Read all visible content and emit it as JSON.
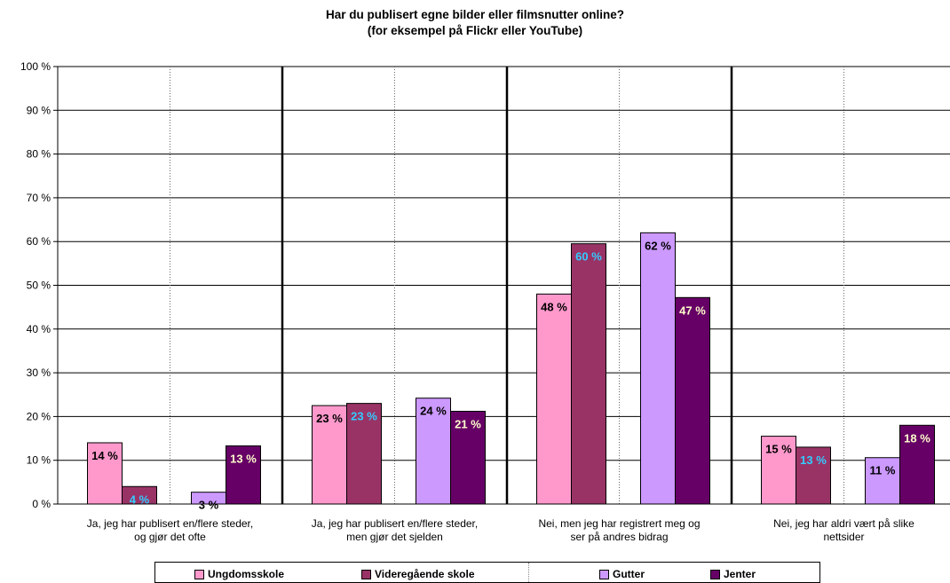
{
  "chart_data": {
    "type": "bar",
    "title_lines": [
      "Har du publisert egne bilder eller filmsnutter online?",
      "(for eksempel på Flickr eller YouTube)"
    ],
    "categories": [
      [
        "Ja, jeg har publisert en/flere steder,",
        "og gjør det ofte"
      ],
      [
        "Ja, jeg har publisert en/flere steder,",
        "men gjør det sjelden"
      ],
      [
        "Nei, men jeg har registrert meg og",
        "ser på andres bidrag"
      ],
      [
        "Nei, jeg har aldri vært på slike",
        "nettsider"
      ]
    ],
    "series": [
      {
        "name": "Ungdomsskole",
        "color": "#ff99cc",
        "values": [
          14,
          22.5,
          48,
          15.5
        ],
        "labels": [
          "14 %",
          "23 %",
          "48 %",
          "15 %"
        ],
        "label_color": "#000000"
      },
      {
        "name": "Videregående skole",
        "color": "#993366",
        "values": [
          4,
          23,
          59.5,
          13
        ],
        "labels": [
          "4 %",
          "23 %",
          "60 %",
          "13 %"
        ],
        "label_color": "#33ccff"
      },
      {
        "name": "Gutter",
        "color": "#cc99ff",
        "values": [
          2.7,
          24.2,
          62,
          10.6
        ],
        "labels": [
          "3 %",
          "24 %",
          "62 %",
          "11 %"
        ],
        "label_color": "#000000"
      },
      {
        "name": "Jenter",
        "color": "#660066",
        "values": [
          13.3,
          21.2,
          47.2,
          18
        ],
        "labels": [
          "13 %",
          "21 %",
          "47 %",
          "18 %"
        ],
        "label_color": "#ffffcc"
      }
    ],
    "yticks": [
      "0 %",
      "10 %",
      "20 %",
      "30 %",
      "40 %",
      "50 %",
      "60 %",
      "70 %",
      "80 %",
      "90 %",
      "100 %"
    ],
    "ylim": [
      0,
      100
    ],
    "grid": true,
    "legend_position": "bottom"
  }
}
